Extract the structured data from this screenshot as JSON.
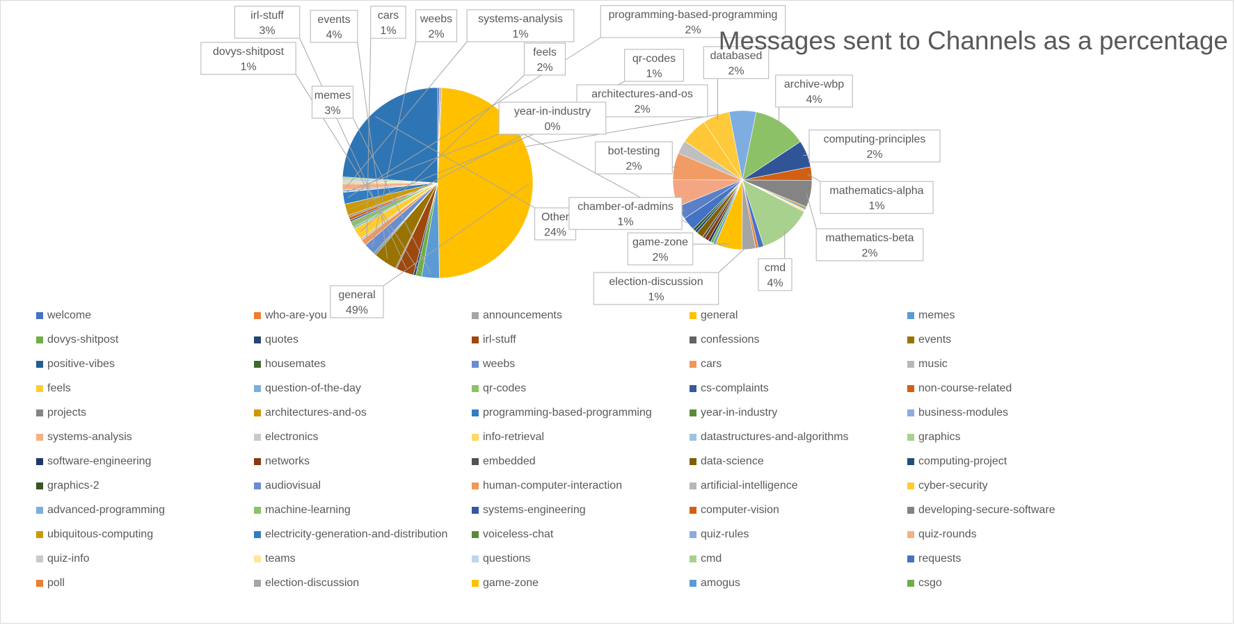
{
  "chart_data": {
    "type": "pie",
    "subtype": "pie-of-pie",
    "title": "Messages sent to Channels as a percentage",
    "legend_position": "bottom",
    "primary_slices": [
      {
        "name": "welcome",
        "value": 0.3,
        "color": "#4472C4"
      },
      {
        "name": "who-are-you",
        "value": 0.2,
        "color": "#ED7D31"
      },
      {
        "name": "announcements",
        "value": 0.2,
        "color": "#A5A5A5"
      },
      {
        "name": "general",
        "value": 49,
        "color": "#FFC000"
      },
      {
        "name": "memes",
        "value": 3,
        "color": "#5B9BD5"
      },
      {
        "name": "dovys-shitpost",
        "value": 1,
        "color": "#70AD47"
      },
      {
        "name": "quotes",
        "value": 0.4,
        "color": "#264478"
      },
      {
        "name": "irl-stuff",
        "value": 3,
        "color": "#9E480E"
      },
      {
        "name": "confessions",
        "value": 0.2,
        "color": "#636363"
      },
      {
        "name": "events",
        "value": 4,
        "color": "#997300"
      },
      {
        "name": "positive-vibes",
        "value": 0.2,
        "color": "#255E91"
      },
      {
        "name": "housemates",
        "value": 0.2,
        "color": "#43682B"
      },
      {
        "name": "weebs",
        "value": 2,
        "color": "#698ED0"
      },
      {
        "name": "cars",
        "value": 1,
        "color": "#F1975A"
      },
      {
        "name": "music",
        "value": 0.3,
        "color": "#B7B7B7"
      },
      {
        "name": "feels",
        "value": 2,
        "color": "#FFCD33"
      },
      {
        "name": "question-of-the-day",
        "value": 0.3,
        "color": "#7CAFDD"
      },
      {
        "name": "qr-codes",
        "value": 1,
        "color": "#8CC168"
      },
      {
        "name": "cs-complaints",
        "value": 0.3,
        "color": "#335AA1"
      },
      {
        "name": "non-course-related",
        "value": 0.5,
        "color": "#D26012"
      },
      {
        "name": "projects",
        "value": 0.3,
        "color": "#848484"
      },
      {
        "name": "architectures-and-os",
        "value": 2,
        "color": "#CC9A00"
      },
      {
        "name": "programming-based-programming",
        "value": 2,
        "color": "#327DC2"
      },
      {
        "name": "year-in-industry",
        "value": 0.1,
        "color": "#5A8A39"
      },
      {
        "name": "business-modules",
        "value": 0.3,
        "color": "#8FAADC"
      },
      {
        "name": "systems-analysis",
        "value": 1,
        "color": "#F4B183"
      },
      {
        "name": "electronics",
        "value": 0.3,
        "color": "#C9C9C9"
      },
      {
        "name": "info-retrieval",
        "value": 0.3,
        "color": "#FFD966"
      },
      {
        "name": "datastructures-and-algorithms",
        "value": 0.3,
        "color": "#9DC3E6"
      },
      {
        "name": "graphics",
        "value": 0.3,
        "color": "#A9D18E"
      },
      {
        "name": "Other",
        "value": 24,
        "color": "#2E75B6"
      }
    ],
    "secondary_slices": [
      {
        "name": "archive-wbp",
        "value": 4,
        "color": "#8CC168"
      },
      {
        "name": "computing-principles",
        "value": 2,
        "color": "#2F5597"
      },
      {
        "name": "mathematics-alpha",
        "value": 1,
        "color": "#D26012"
      },
      {
        "name": "mathematics-beta",
        "value": 2,
        "color": "#848484"
      },
      {
        "name": "ubiquitous-computing",
        "value": 0.1,
        "color": "#CC9A00"
      },
      {
        "name": "electricity-generation-and-distribution",
        "value": 0.1,
        "color": "#2E75B6"
      },
      {
        "name": "quiz-rounds",
        "value": 0.1,
        "color": "#F8CBAD"
      },
      {
        "name": "teams",
        "value": 0.1,
        "color": "#FFE699"
      },
      {
        "name": "cmd",
        "value": 4,
        "color": "#A9D18E"
      },
      {
        "name": "requests",
        "value": 0.4,
        "color": "#4472C4"
      },
      {
        "name": "poll",
        "value": 0.2,
        "color": "#ED7D31"
      },
      {
        "name": "election-discussion",
        "value": 1,
        "color": "#A5A5A5"
      },
      {
        "name": "game-zone",
        "value": 2,
        "color": "#FFC000"
      },
      {
        "name": "amogus",
        "value": 0.2,
        "color": "#5B9BD5"
      },
      {
        "name": "csgo",
        "value": 0.2,
        "color": "#70AD47"
      },
      {
        "name": "software-engineering",
        "value": 0.2,
        "color": "#203864"
      },
      {
        "name": "networks",
        "value": 0.3,
        "color": "#843C0C"
      },
      {
        "name": "embedded",
        "value": 0.2,
        "color": "#525252"
      },
      {
        "name": "data-science",
        "value": 0.5,
        "color": "#7F6000"
      },
      {
        "name": "computing-project",
        "value": 0.2,
        "color": "#1F4E79"
      },
      {
        "name": "graphics-2",
        "value": 0.2,
        "color": "#375623"
      },
      {
        "name": "audiovisual",
        "value": 1,
        "color": "#4472C4"
      },
      {
        "name": "chamber-of-admins",
        "value": 1,
        "color": "#5B80C8"
      },
      {
        "name": "human-computer-interaction",
        "value": 2,
        "color": "#F4A582"
      },
      {
        "name": "bot-testing",
        "value": 2,
        "color": "#F19C65"
      },
      {
        "name": "artificial-intelligence",
        "value": 1,
        "color": "#BFBFBF"
      },
      {
        "name": "cyber-security",
        "value": 2,
        "color": "#FFC737"
      },
      {
        "name": "databased",
        "value": 2,
        "color": "#FFCA3A"
      },
      {
        "name": "advanced-programming",
        "value": 2,
        "color": "#7EADE2"
      }
    ],
    "data_labels": [
      {
        "name": "general",
        "value_label": "49%"
      },
      {
        "name": "memes",
        "value_label": "3%"
      },
      {
        "name": "dovys-shitpost",
        "value_label": "1%"
      },
      {
        "name": "irl-stuff",
        "value_label": "3%"
      },
      {
        "name": "events",
        "value_label": "4%"
      },
      {
        "name": "cars",
        "value_label": "1%"
      },
      {
        "name": "weebs",
        "value_label": "2%"
      },
      {
        "name": "systems-analysis",
        "value_label": "1%"
      },
      {
        "name": "programming-based-programming",
        "value_label": "2%"
      },
      {
        "name": "feels",
        "value_label": "2%"
      },
      {
        "name": "qr-codes",
        "value_label": "1%"
      },
      {
        "name": "architectures-and-os",
        "value_label": "2%"
      },
      {
        "name": "year-in-industry",
        "value_label": "0%"
      },
      {
        "name": "Other",
        "value_label": "24%"
      },
      {
        "name": "databased",
        "value_label": "2%"
      },
      {
        "name": "archive-wbp",
        "value_label": "4%"
      },
      {
        "name": "computing-principles",
        "value_label": "2%"
      },
      {
        "name": "mathematics-alpha",
        "value_label": "1%"
      },
      {
        "name": "mathematics-beta",
        "value_label": "2%"
      },
      {
        "name": "cmd",
        "value_label": "4%"
      },
      {
        "name": "election-discussion",
        "value_label": "1%"
      },
      {
        "name": "game-zone",
        "value_label": "2%"
      },
      {
        "name": "chamber-of-admins",
        "value_label": "1%"
      },
      {
        "name": "bot-testing",
        "value_label": "2%"
      }
    ],
    "legend": [
      {
        "name": "welcome",
        "color": "#4472C4"
      },
      {
        "name": "who-are-you",
        "color": "#ED7D31"
      },
      {
        "name": "announcements",
        "color": "#A5A5A5"
      },
      {
        "name": "general",
        "color": "#FFC000"
      },
      {
        "name": "memes",
        "color": "#5B9BD5"
      },
      {
        "name": "dovys-shitpost",
        "color": "#70AD47"
      },
      {
        "name": "quotes",
        "color": "#264478"
      },
      {
        "name": "irl-stuff",
        "color": "#9E480E"
      },
      {
        "name": "confessions",
        "color": "#636363"
      },
      {
        "name": "events",
        "color": "#997300"
      },
      {
        "name": "positive-vibes",
        "color": "#255E91"
      },
      {
        "name": "housemates",
        "color": "#43682B"
      },
      {
        "name": "weebs",
        "color": "#698ED0"
      },
      {
        "name": "cars",
        "color": "#F1975A"
      },
      {
        "name": "music",
        "color": "#B7B7B7"
      },
      {
        "name": "feels",
        "color": "#FFCD33"
      },
      {
        "name": "question-of-the-day",
        "color": "#7CAFDD"
      },
      {
        "name": "qr-codes",
        "color": "#8CC168"
      },
      {
        "name": "cs-complaints",
        "color": "#335AA1"
      },
      {
        "name": "non-course-related",
        "color": "#D26012"
      },
      {
        "name": "projects",
        "color": "#848484"
      },
      {
        "name": "architectures-and-os",
        "color": "#CC9A00"
      },
      {
        "name": "programming-based-programming",
        "color": "#327DC2"
      },
      {
        "name": "year-in-industry",
        "color": "#5A8A39"
      },
      {
        "name": "business-modules",
        "color": "#8FAADC"
      },
      {
        "name": "systems-analysis",
        "color": "#F4B183"
      },
      {
        "name": "electronics",
        "color": "#C9C9C9"
      },
      {
        "name": "info-retrieval",
        "color": "#FFD966"
      },
      {
        "name": "datastructures-and-algorithms",
        "color": "#9DC3E6"
      },
      {
        "name": "graphics",
        "color": "#A9D18E"
      },
      {
        "name": "software-engineering",
        "color": "#203864"
      },
      {
        "name": "networks",
        "color": "#843C0C"
      },
      {
        "name": "embedded",
        "color": "#525252"
      },
      {
        "name": "data-science",
        "color": "#7F6000"
      },
      {
        "name": "computing-project",
        "color": "#1F4E79"
      },
      {
        "name": "graphics-2",
        "color": "#375623"
      },
      {
        "name": "audiovisual",
        "color": "#698ED0"
      },
      {
        "name": "human-computer-interaction",
        "color": "#F1975A"
      },
      {
        "name": "artificial-intelligence",
        "color": "#B7B7B7"
      },
      {
        "name": "cyber-security",
        "color": "#FFCD33"
      },
      {
        "name": "advanced-programming",
        "color": "#7CAFDD"
      },
      {
        "name": "machine-learning",
        "color": "#8CC168"
      },
      {
        "name": "systems-engineering",
        "color": "#335AA1"
      },
      {
        "name": "computer-vision",
        "color": "#D26012"
      },
      {
        "name": "developing-secure-software",
        "color": "#848484"
      },
      {
        "name": "ubiquitous-computing",
        "color": "#CC9A00"
      },
      {
        "name": "electricity-generation-and-distribution",
        "color": "#327DC2"
      },
      {
        "name": "voiceless-chat",
        "color": "#5A8A39"
      },
      {
        "name": "quiz-rules",
        "color": "#8FAADC"
      },
      {
        "name": "quiz-rounds",
        "color": "#F4B183"
      },
      {
        "name": "quiz-info",
        "color": "#C9C9C9"
      },
      {
        "name": "teams",
        "color": "#FFE699"
      },
      {
        "name": "questions",
        "color": "#BDD7EE"
      },
      {
        "name": "cmd",
        "color": "#A9D18E"
      },
      {
        "name": "requests",
        "color": "#4472C4"
      },
      {
        "name": "poll",
        "color": "#ED7D31"
      },
      {
        "name": "election-discussion",
        "color": "#A5A5A5"
      },
      {
        "name": "game-zone",
        "color": "#FFC000"
      },
      {
        "name": "amogus",
        "color": "#5B9BD5"
      },
      {
        "name": "csgo",
        "color": "#70AD47"
      }
    ]
  }
}
